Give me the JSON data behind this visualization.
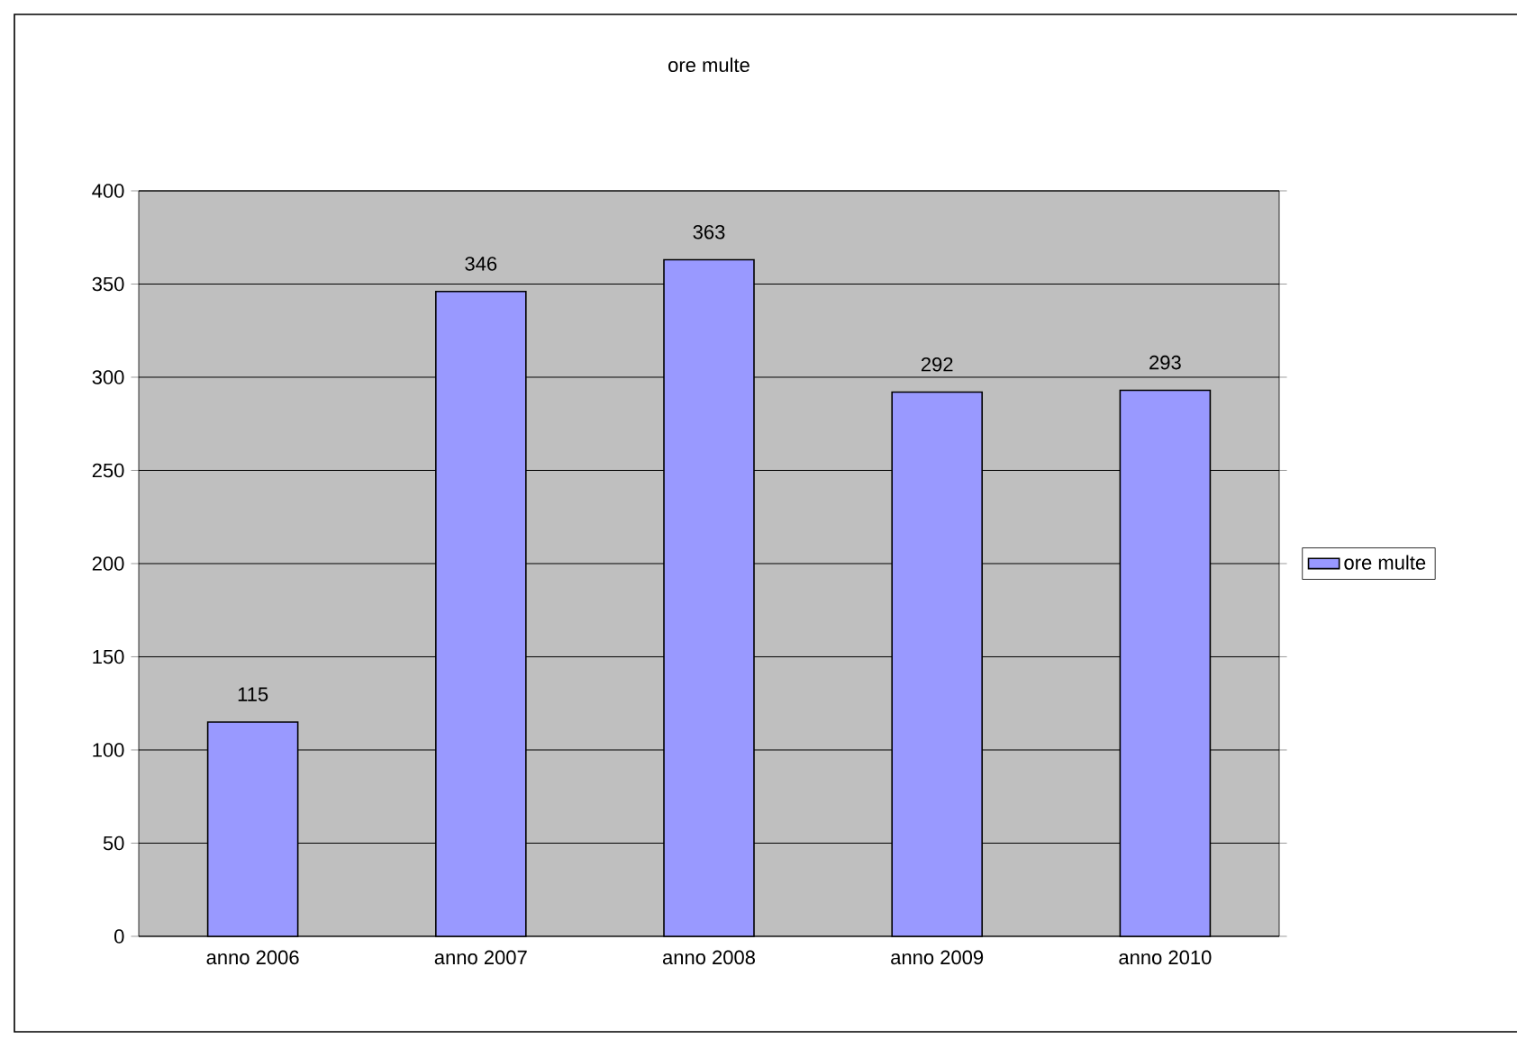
{
  "chart_data": {
    "type": "bar",
    "title": "ore multe",
    "categories": [
      "anno 2006",
      "anno 2007",
      "anno 2008",
      "anno 2009",
      "anno 2010"
    ],
    "series": [
      {
        "name": "ore multe",
        "color": "#9999ff",
        "values": [
          115,
          346,
          363,
          292,
          293
        ]
      }
    ],
    "ylim": [
      0,
      400
    ],
    "yticks": [
      0,
      50,
      100,
      150,
      200,
      250,
      300,
      350,
      400
    ],
    "grid": "y",
    "legend": "right",
    "data_labels": true
  }
}
